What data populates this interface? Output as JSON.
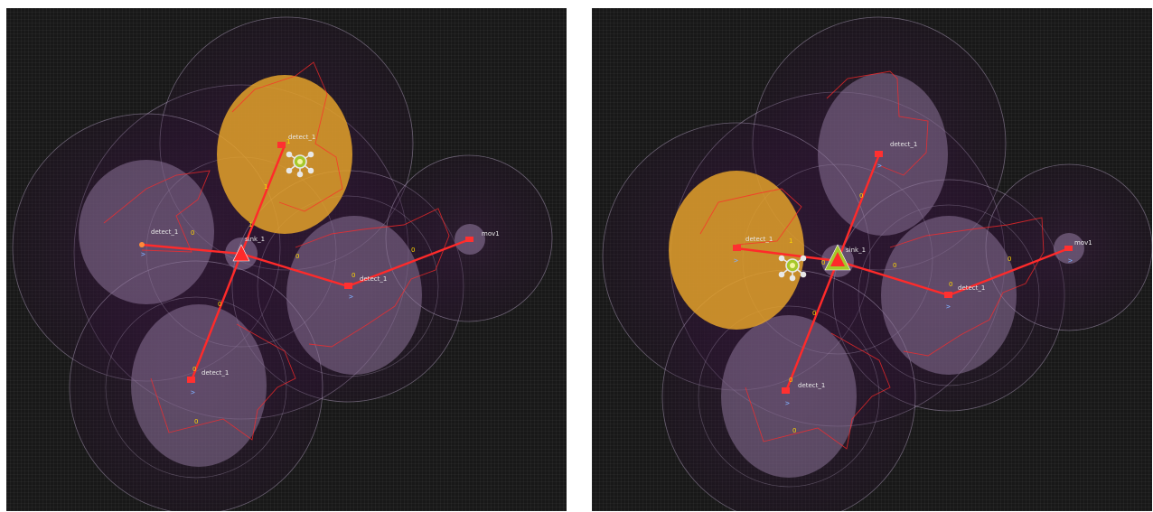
{
  "colors": {
    "background": "#181818",
    "range_ring": "#b9a8c8",
    "zone_fill": "#8a7398",
    "active_zone": "#e3a12a",
    "route": "#ff2a2a",
    "label": "#e8e8e8",
    "counter": "#ffd700",
    "direction_marker": "#7fb0ff"
  },
  "icons": [
    "sink-triangle-icon",
    "device-node-icon",
    "active-sensor-icon"
  ],
  "panels": [
    {
      "id": "left",
      "nodes": [
        {
          "key": "sink",
          "label": "sink_1"
        },
        {
          "key": "detect_top",
          "label": "detect_1"
        },
        {
          "key": "detect_left",
          "label": "detect_1"
        },
        {
          "key": "detect_right",
          "label": "detect_1"
        },
        {
          "key": "detect_bottom",
          "label": "detect_1"
        },
        {
          "key": "mov",
          "label": "mov1"
        }
      ],
      "counters": [
        "1",
        "1",
        "1",
        "0",
        "0",
        "0",
        "0",
        "0",
        "0",
        "0"
      ],
      "direction_markers": [
        ">",
        ">",
        ">"
      ],
      "active_zone": "detect_top"
    },
    {
      "id": "right",
      "nodes": [
        {
          "key": "sink",
          "label": "sink_1"
        },
        {
          "key": "detect_top",
          "label": "detect_1"
        },
        {
          "key": "detect_left",
          "label": "detect_1"
        },
        {
          "key": "detect_right",
          "label": "detect_1"
        },
        {
          "key": "detect_bottom",
          "label": "detect_1"
        },
        {
          "key": "mov",
          "label": "mov1"
        }
      ],
      "counters": [
        "0",
        "1",
        "0",
        "0",
        "0",
        "0",
        "0",
        "0",
        "0"
      ],
      "direction_markers": [
        ">",
        ">",
        ">",
        ">",
        ">"
      ],
      "active_zone": "detect_left"
    }
  ]
}
